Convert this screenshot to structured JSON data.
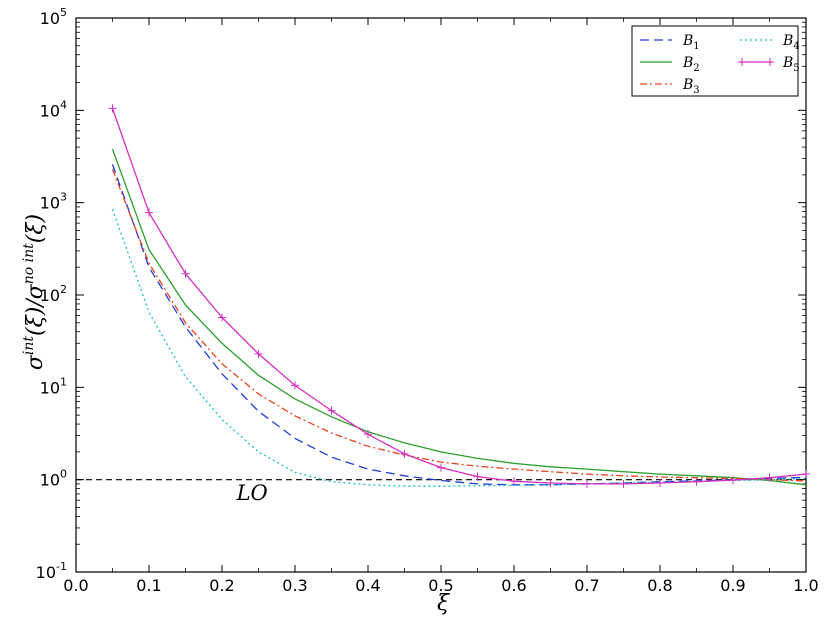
{
  "chart_data": {
    "type": "line",
    "xlabel": "ξ",
    "ylabel_main": "σ",
    "ylabel_sup1": "int",
    "ylabel_mid": "(ξ)/σ",
    "ylabel_sup2": "no int",
    "ylabel_tail": "(ξ)",
    "xlim": [
      0.0,
      1.0
    ],
    "ylim": [
      0.1,
      100000
    ],
    "yscale": "log",
    "grid": false,
    "legend_position": "top-right",
    "x_ticks": [
      "0.0",
      "0.1",
      "0.2",
      "0.3",
      "0.4",
      "0.5",
      "0.6",
      "0.7",
      "0.8",
      "0.9",
      "1.0"
    ],
    "y_ticks": [
      {
        "base": "10",
        "exp": "-1"
      },
      {
        "base": "10",
        "exp": "0"
      },
      {
        "base": "10",
        "exp": "1"
      },
      {
        "base": "10",
        "exp": "2"
      },
      {
        "base": "10",
        "exp": "3"
      },
      {
        "base": "10",
        "exp": "4"
      },
      {
        "base": "10",
        "exp": "5"
      }
    ],
    "x": [
      0.05,
      0.1,
      0.15,
      0.2,
      0.25,
      0.3,
      0.35,
      0.4,
      0.45,
      0.5,
      0.55,
      0.6,
      0.65,
      0.7,
      0.75,
      0.8,
      0.85,
      0.9,
      0.95,
      1.0
    ],
    "series": [
      {
        "name": "B",
        "sub": "1",
        "color": "#1f3fdc",
        "dash": "9,5",
        "marker": "none",
        "values": [
          2600,
          200,
          45,
          14,
          5.5,
          2.8,
          1.75,
          1.3,
          1.1,
          0.98,
          0.9,
          0.88,
          0.88,
          0.9,
          0.92,
          0.95,
          0.97,
          1.0,
          1.03,
          1.06
        ]
      },
      {
        "name": "B",
        "sub": "2",
        "color": "#2ca02c",
        "dash": "",
        "marker": "none",
        "values": [
          3800,
          310,
          78,
          30,
          13.5,
          7.5,
          4.8,
          3.3,
          2.5,
          2.0,
          1.7,
          1.5,
          1.38,
          1.3,
          1.22,
          1.15,
          1.1,
          1.05,
          0.98,
          0.88
        ]
      },
      {
        "name": "B",
        "sub": "3",
        "color": "#e8431a",
        "dash": "7,3,2,3",
        "marker": "none",
        "values": [
          2300,
          220,
          50,
          18,
          8.5,
          4.9,
          3.2,
          2.3,
          1.85,
          1.55,
          1.4,
          1.3,
          1.22,
          1.15,
          1.1,
          1.07,
          1.05,
          1.03,
          1.0,
          0.97
        ]
      },
      {
        "name": "B",
        "sub": "4",
        "color": "#17bfcf",
        "dash": "2,3",
        "marker": "none",
        "values": [
          850,
          65,
          13,
          4.5,
          2.0,
          1.2,
          0.95,
          0.88,
          0.85,
          0.85,
          0.86,
          0.87,
          0.88,
          0.9,
          0.92,
          0.94,
          0.96,
          0.98,
          1.0,
          1.03
        ]
      },
      {
        "name": "B",
        "sub": "5",
        "color": "#d62fc0",
        "dash": "",
        "marker": "plus",
        "values": [
          10500,
          780,
          170,
          57,
          23,
          10.5,
          5.6,
          3.1,
          1.9,
          1.35,
          1.08,
          0.96,
          0.92,
          0.9,
          0.9,
          0.92,
          0.95,
          0.99,
          1.05,
          1.15
        ]
      }
    ],
    "reference_line": {
      "y": 1.0,
      "label": "LO",
      "label_x": 0.22,
      "label_y": 0.6
    }
  }
}
